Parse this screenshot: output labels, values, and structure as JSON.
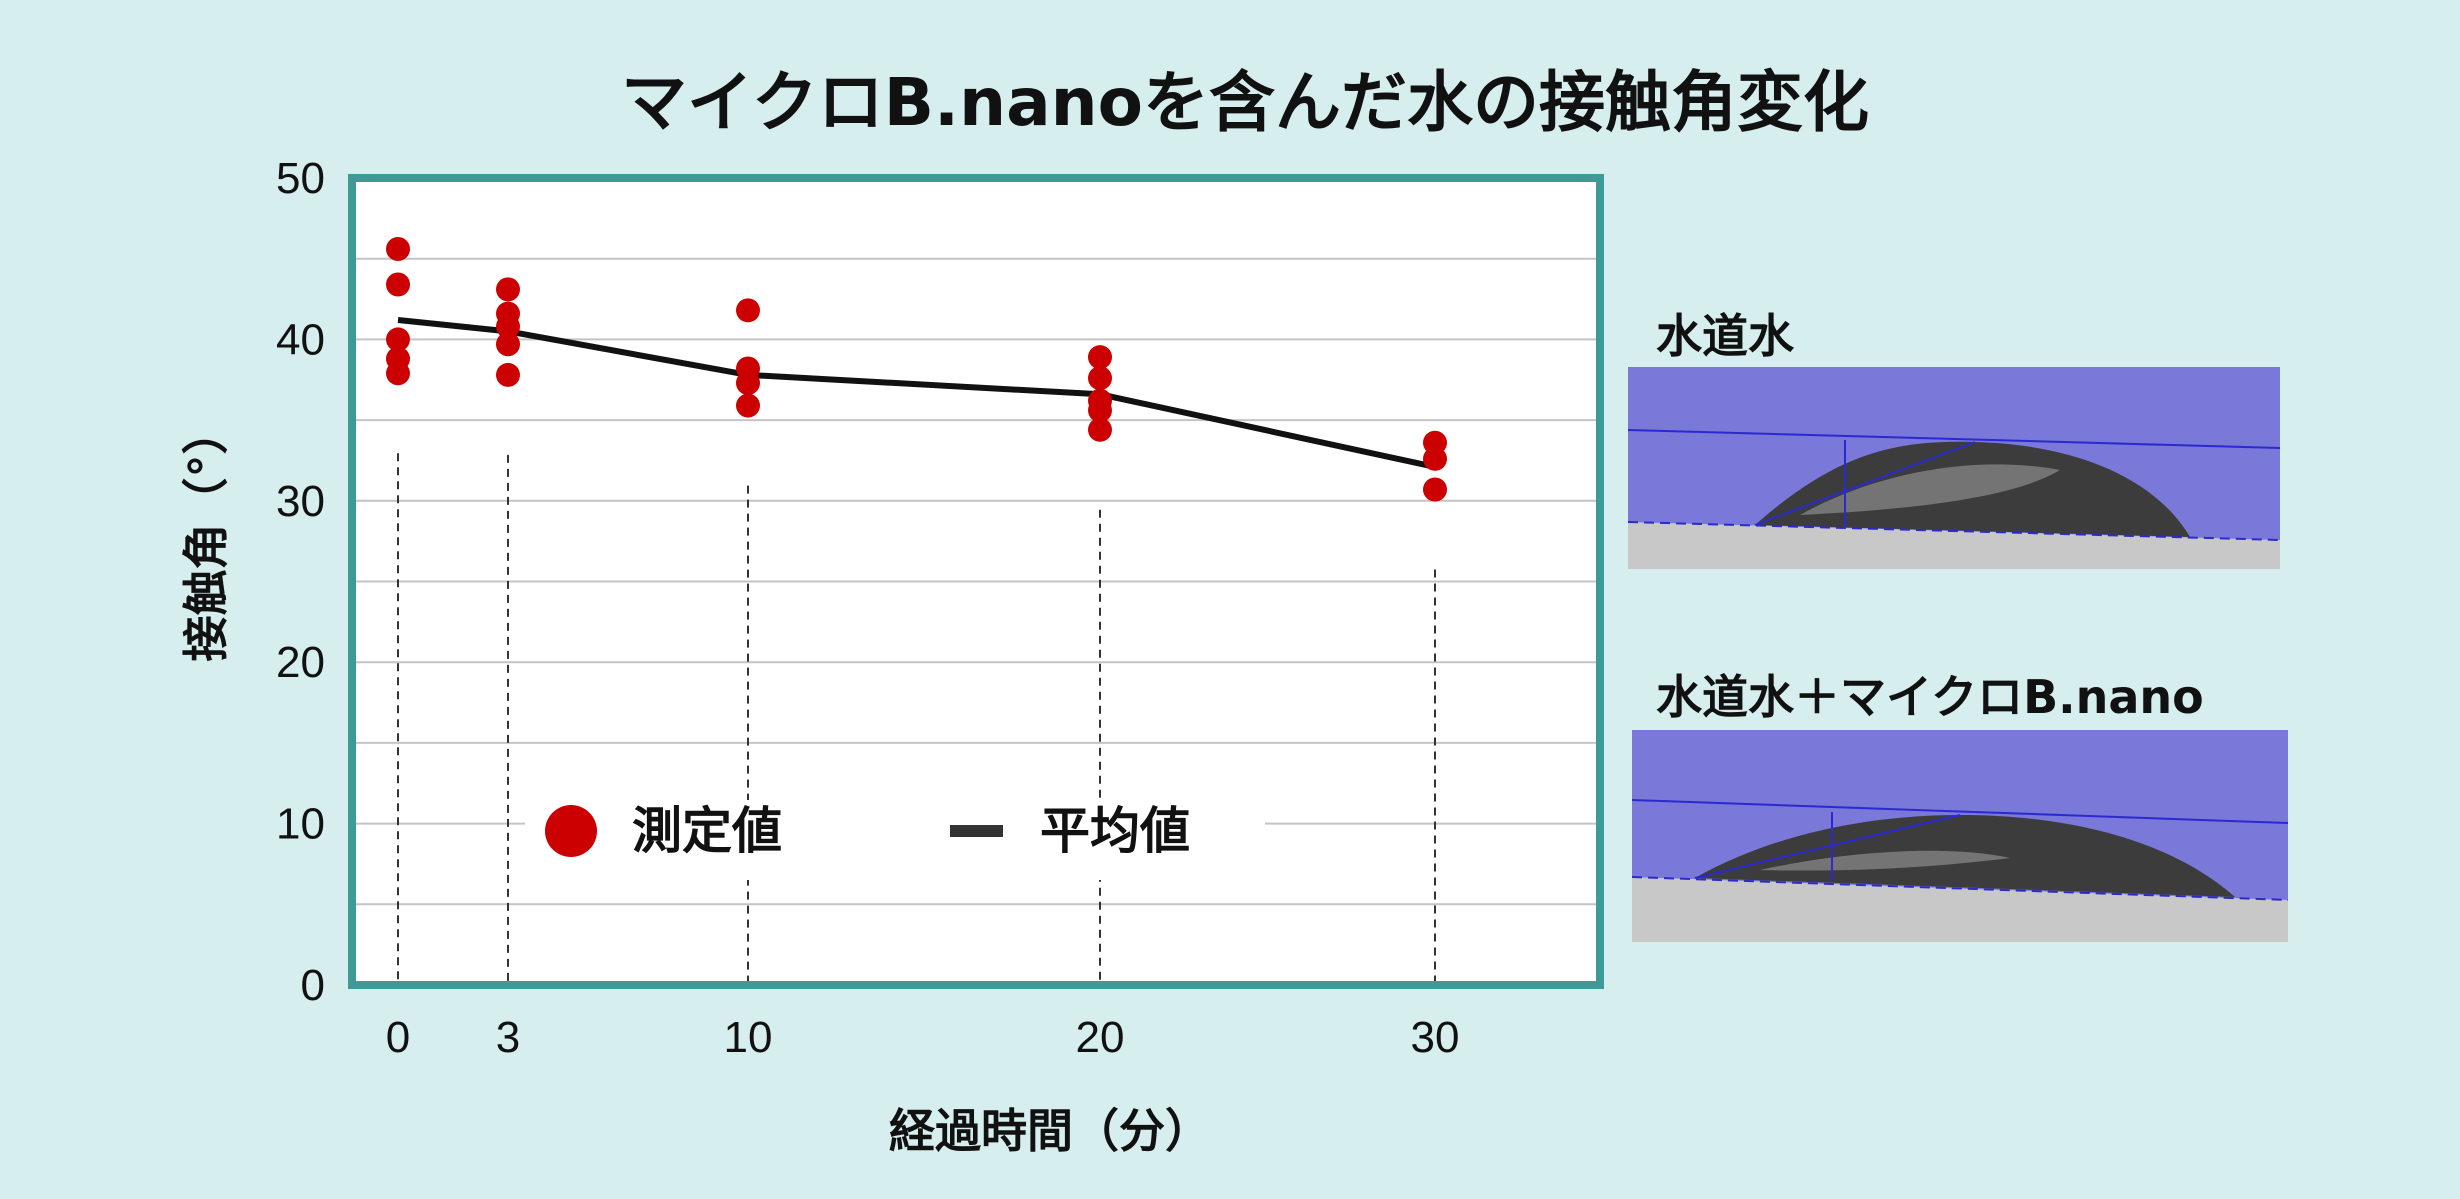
{
  "chart_data": {
    "type": "scatter",
    "title": "マイクロB.nanoを含んだ水の接触角変化",
    "xlabel": "経過時間（分）",
    "ylabel": "接触角（°）",
    "ylim": [
      0,
      50
    ],
    "y_ticks": [
      "0",
      "10",
      "20",
      "30",
      "40",
      "50"
    ],
    "x_ticks": [
      "0",
      "3",
      "10",
      "20",
      "30"
    ],
    "x_tick_values": [
      0,
      3,
      10,
      20,
      30
    ],
    "grid": true,
    "legend": [
      {
        "label": "測定値",
        "marker": "circle",
        "color": "#cc0000"
      },
      {
        "label": "平均値",
        "marker": "line",
        "color": "#333333"
      }
    ],
    "series": [
      {
        "name": "測定値",
        "type": "scatter",
        "color": "#cc0000",
        "points": [
          [
            0,
            45.6
          ],
          [
            0,
            43.4
          ],
          [
            0,
            40.0
          ],
          [
            0,
            38.8
          ],
          [
            0,
            37.9
          ],
          [
            3,
            43.1
          ],
          [
            3,
            41.6
          ],
          [
            3,
            40.8
          ],
          [
            3,
            39.7
          ],
          [
            3,
            37.8
          ],
          [
            10,
            41.8
          ],
          [
            10,
            38.2
          ],
          [
            10,
            37.3
          ],
          [
            10,
            35.9
          ],
          [
            20,
            38.9
          ],
          [
            20,
            37.6
          ],
          [
            20,
            36.2
          ],
          [
            20,
            35.6
          ],
          [
            20,
            34.4
          ],
          [
            30,
            33.6
          ],
          [
            30,
            32.6
          ],
          [
            30,
            30.7
          ]
        ]
      },
      {
        "name": "平均値",
        "type": "line",
        "color": "#111111",
        "x": [
          0,
          3,
          10,
          20,
          30
        ],
        "values": [
          41.2,
          40.5,
          37.8,
          36.6,
          32.1
        ]
      }
    ]
  },
  "photos": [
    {
      "label": "水道水"
    },
    {
      "label": "水道水＋マイクロB.nano"
    }
  ],
  "colors": {
    "background": "#d6eeee",
    "plot_border": "#3d9a96",
    "photo_sky": "#7a78d8",
    "photo_floor": "#c8c8c8"
  }
}
